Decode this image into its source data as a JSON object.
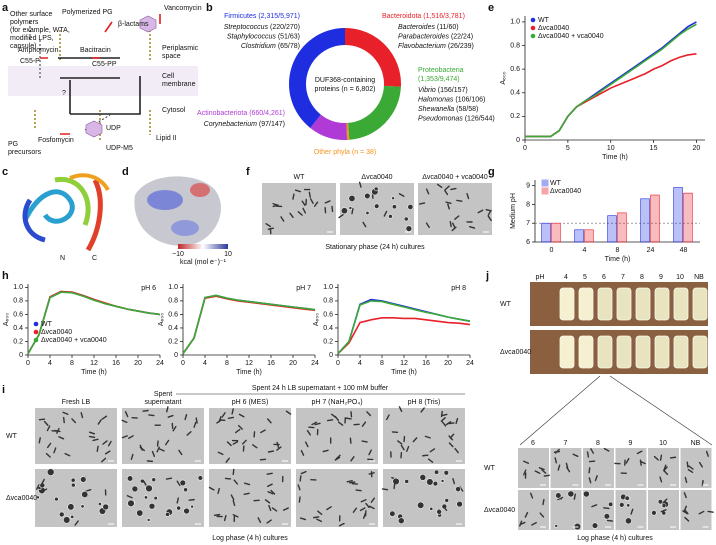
{
  "panel_labels": [
    "a",
    "b",
    "c",
    "d",
    "e",
    "f",
    "g",
    "h",
    "i",
    "j"
  ],
  "diagram": {
    "surface_polymers": [
      "Other surface",
      "polymers",
      "(for example, WTA,",
      "modified LPS,",
      "capsule)"
    ],
    "polymerized_pg": "Polymerized PG",
    "beta_lactams": "β-lactams",
    "vancomycin": "Vancomycin",
    "amphomycin": "Amphomycin",
    "bacitracin": "Bacitracin",
    "c55p": "C55-P",
    "c55pp": "C55-PP",
    "periplasm": [
      "Periplasmic",
      "space"
    ],
    "membrane": [
      "Cell",
      "membrane"
    ],
    "cytosol": "Cytosol",
    "question": "?",
    "fosfomycin": "Fosfomycin",
    "udp": "UDP",
    "udp_m5": "UDP-M5",
    "precursors": [
      "PG",
      "precursors"
    ],
    "lipid2": "Lipid II"
  },
  "structure": {
    "n": "N",
    "c": "C",
    "scale_min": "−10",
    "scale_max": "10",
    "scale_unit": "kcal (mol e⁻)⁻¹"
  },
  "panel_f": {
    "columns": [
      "WT",
      "Δvca0040",
      "Δvca0040 + vca0040"
    ],
    "caption": "Stationary phase (24 h) cultures"
  },
  "panel_i": {
    "columns": [
      [
        "Fresh LB"
      ],
      [
        "Spent",
        "supernatant"
      ],
      [
        "pH 6 (MES)"
      ],
      [
        "pH 7 (NaH₂PO₄)"
      ],
      [
        "pH 8 (Tris)"
      ]
    ],
    "group_header": "Spent 24 h LB supernatant + 100 mM buffer",
    "rows": [
      "WT",
      "Δvca0040"
    ],
    "caption": "Log phase (4 h) cultures"
  },
  "panel_j": {
    "photo_columns": [
      "pH",
      "4",
      "5",
      "6",
      "7",
      "8",
      "9",
      "10",
      "NB"
    ],
    "photo_rows": [
      "WT",
      "Δvca0040"
    ],
    "micro_columns": [
      "6",
      "7",
      "8",
      "9",
      "10",
      "NB"
    ],
    "micro_rows": [
      "WT",
      "Δvca0040"
    ],
    "caption": "Log phase (4 h) cultures"
  },
  "chart_data": [
    {
      "type": "donut",
      "center_text": [
        "DUF368-containing",
        "proteins (n = 6,802)"
      ],
      "categories": [
        "Bacteroidota",
        "Proteobacteria",
        "Other phyla",
        "Actinobacteriota",
        "Firmicutes"
      ],
      "values": [
        1516,
        1353,
        38,
        660,
        2315
      ],
      "value_labels": [
        "(1,516/3,781)",
        "(1,353/9,474)",
        "(n = 38)",
        "(660/4,261)",
        "(2,315/5,971)"
      ],
      "colors": [
        "#e8202a",
        "#3aa935",
        "#f7941d",
        "#b03ad6",
        "#1f2de0"
      ],
      "genera": [
        [
          {
            "name": "Bacteroides",
            "count": "(11/60)"
          },
          {
            "name": "Parabacteroides",
            "count": "(22/24)"
          },
          {
            "name": "Flavobacterium",
            "count": "(26/239)"
          }
        ],
        [
          {
            "name": "Vibrio",
            "count": "(156/157)"
          },
          {
            "name": "Halomonas",
            "count": "(106/106)"
          },
          {
            "name": "Shewanella",
            "count": "(58/58)"
          },
          {
            "name": "Pseudomonas",
            "count": "(126/544)"
          }
        ],
        [],
        [
          {
            "name": "Corynebacterium",
            "count": "(97/147)"
          }
        ],
        [
          {
            "name": "Streptococcus",
            "count": "(220/270)"
          },
          {
            "name": "Staphylococcus",
            "count": "(51/63)"
          },
          {
            "name": "Clostridium",
            "count": "(65/78)"
          }
        ]
      ]
    },
    {
      "type": "line",
      "xlabel": "Time (h)",
      "ylabel": "A₆₀₀",
      "legend": true,
      "x": [
        0,
        1,
        2,
        3,
        4,
        5,
        6,
        7,
        8,
        9,
        10,
        11,
        12,
        13,
        14,
        15,
        16,
        17,
        18,
        19,
        20
      ],
      "xlim": [
        0,
        21
      ],
      "xticks": [
        0,
        5,
        10,
        15,
        20
      ],
      "ylim": [
        0,
        1.05
      ],
      "yticks": [
        0,
        0.2,
        0.4,
        0.6,
        0.8,
        {
          "value": 1,
          "label": "1.0"
        }
      ],
      "series": [
        {
          "name": "WT",
          "color": "#1f2de0",
          "values": [
            0.03,
            0.03,
            0.03,
            0.03,
            0.08,
            0.2,
            0.28,
            0.33,
            0.38,
            0.43,
            0.48,
            0.53,
            0.58,
            0.63,
            0.68,
            0.73,
            0.78,
            0.84,
            0.9,
            0.96,
            1.0
          ]
        },
        {
          "name": "Δvca0040",
          "color": "#e8202a",
          "values": [
            0.03,
            0.03,
            0.03,
            0.03,
            0.08,
            0.2,
            0.28,
            0.32,
            0.36,
            0.4,
            0.44,
            0.47,
            0.5,
            0.53,
            0.56,
            0.6,
            0.63,
            0.67,
            0.7,
            0.72,
            0.73
          ]
        },
        {
          "name": "Δvca0040 + vca0040",
          "color": "#3aa935",
          "values": [
            0.03,
            0.03,
            0.03,
            0.03,
            0.08,
            0.2,
            0.28,
            0.33,
            0.37,
            0.42,
            0.47,
            0.52,
            0.57,
            0.62,
            0.67,
            0.72,
            0.77,
            0.83,
            0.89,
            0.94,
            0.98
          ]
        }
      ]
    },
    {
      "type": "bar",
      "xlabel": "Time (h)",
      "ylabel": "Medium pH",
      "legend": true,
      "categories": [
        "0",
        "4",
        "8",
        "24",
        "48"
      ],
      "ylim": [
        6,
        9.3
      ],
      "yticks": [
        6,
        7,
        8,
        9
      ],
      "reference_line": 7,
      "series": [
        {
          "name": "WT",
          "color": "#1f2de0",
          "values": [
            7.0,
            6.65,
            7.4,
            8.3,
            8.9
          ]
        },
        {
          "name": "Δvca0040",
          "color": "#e8202a",
          "values": [
            7.0,
            6.65,
            7.55,
            8.5,
            8.6
          ]
        }
      ]
    },
    {
      "type": "line",
      "title": "pH 6",
      "xlabel": "Time (h)",
      "ylabel": "A₆₀₀",
      "legend": true,
      "x": [
        0,
        2,
        4,
        6,
        8,
        10,
        12,
        14,
        16,
        18,
        20,
        22,
        24
      ],
      "xlim": [
        0,
        24
      ],
      "xticks": [
        0,
        4,
        8,
        12,
        16,
        20,
        24
      ],
      "ylim": [
        0,
        1.05
      ],
      "yticks": [
        0,
        0.2,
        0.4,
        0.6,
        0.8,
        {
          "value": 1,
          "label": "1.0"
        }
      ],
      "series": [
        {
          "name": "WT",
          "color": "#1f2de0",
          "values": [
            0.02,
            0.3,
            0.85,
            0.93,
            0.93,
            0.88,
            0.82,
            0.76,
            0.72,
            0.68,
            0.65,
            0.62,
            0.6
          ]
        },
        {
          "name": "Δvca0040",
          "color": "#e8202a",
          "values": [
            0.02,
            0.3,
            0.86,
            0.94,
            0.93,
            0.88,
            0.82,
            0.77,
            0.72,
            0.68,
            0.65,
            0.62,
            0.6
          ]
        },
        {
          "name": "Δvca0040 + vca0040",
          "color": "#3aa935",
          "values": [
            0.02,
            0.3,
            0.85,
            0.93,
            0.92,
            0.87,
            0.81,
            0.76,
            0.72,
            0.68,
            0.65,
            0.62,
            0.6
          ]
        }
      ]
    },
    {
      "type": "line",
      "title": "pH 7",
      "xlabel": "Time (h)",
      "ylabel": "A₆₀₀",
      "x": [
        0,
        2,
        4,
        6,
        8,
        10,
        12,
        14,
        16,
        18,
        20,
        22,
        24
      ],
      "xlim": [
        0,
        24
      ],
      "xticks": [
        0,
        4,
        8,
        12,
        16,
        20,
        24
      ],
      "ylim": [
        0,
        1.05
      ],
      "yticks": [
        0,
        0.2,
        0.4,
        0.6,
        0.8,
        {
          "value": 1,
          "label": "1.0"
        }
      ],
      "series": [
        {
          "color": "#1f2de0",
          "values": [
            0.02,
            0.25,
            0.85,
            0.88,
            0.84,
            0.81,
            0.79,
            0.77,
            0.75,
            0.73,
            0.71,
            0.69,
            0.67
          ]
        },
        {
          "color": "#e8202a",
          "values": [
            0.02,
            0.25,
            0.84,
            0.87,
            0.83,
            0.8,
            0.78,
            0.76,
            0.74,
            0.72,
            0.7,
            0.68,
            0.66
          ]
        },
        {
          "color": "#3aa935",
          "values": [
            0.02,
            0.25,
            0.85,
            0.88,
            0.84,
            0.81,
            0.79,
            0.77,
            0.75,
            0.73,
            0.71,
            0.69,
            0.67
          ]
        }
      ]
    },
    {
      "type": "line",
      "title": "pH 8",
      "xlabel": "Time (h)",
      "ylabel": "A₆₀₀",
      "x": [
        0,
        2,
        4,
        6,
        8,
        10,
        12,
        14,
        16,
        18,
        20,
        22,
        24
      ],
      "xlim": [
        0,
        24
      ],
      "xticks": [
        0,
        4,
        8,
        12,
        16,
        20,
        24
      ],
      "ylim": [
        0,
        1.05
      ],
      "yticks": [
        0,
        0.2,
        0.4,
        0.6,
        0.8,
        {
          "value": 1,
          "label": "1.0"
        }
      ],
      "series": [
        {
          "color": "#1f2de0",
          "values": [
            0.02,
            0.2,
            0.75,
            0.82,
            0.8,
            0.76,
            0.72,
            0.68,
            0.64,
            0.6,
            0.56,
            0.53,
            0.5
          ]
        },
        {
          "color": "#e8202a",
          "values": [
            0.02,
            0.18,
            0.48,
            0.52,
            0.55,
            0.55,
            0.54,
            0.54,
            0.52,
            0.5,
            0.48,
            0.47,
            0.45
          ]
        },
        {
          "color": "#3aa935",
          "values": [
            0.02,
            0.2,
            0.74,
            0.8,
            0.79,
            0.75,
            0.71,
            0.67,
            0.63,
            0.6,
            0.56,
            0.53,
            0.5
          ]
        }
      ]
    }
  ]
}
